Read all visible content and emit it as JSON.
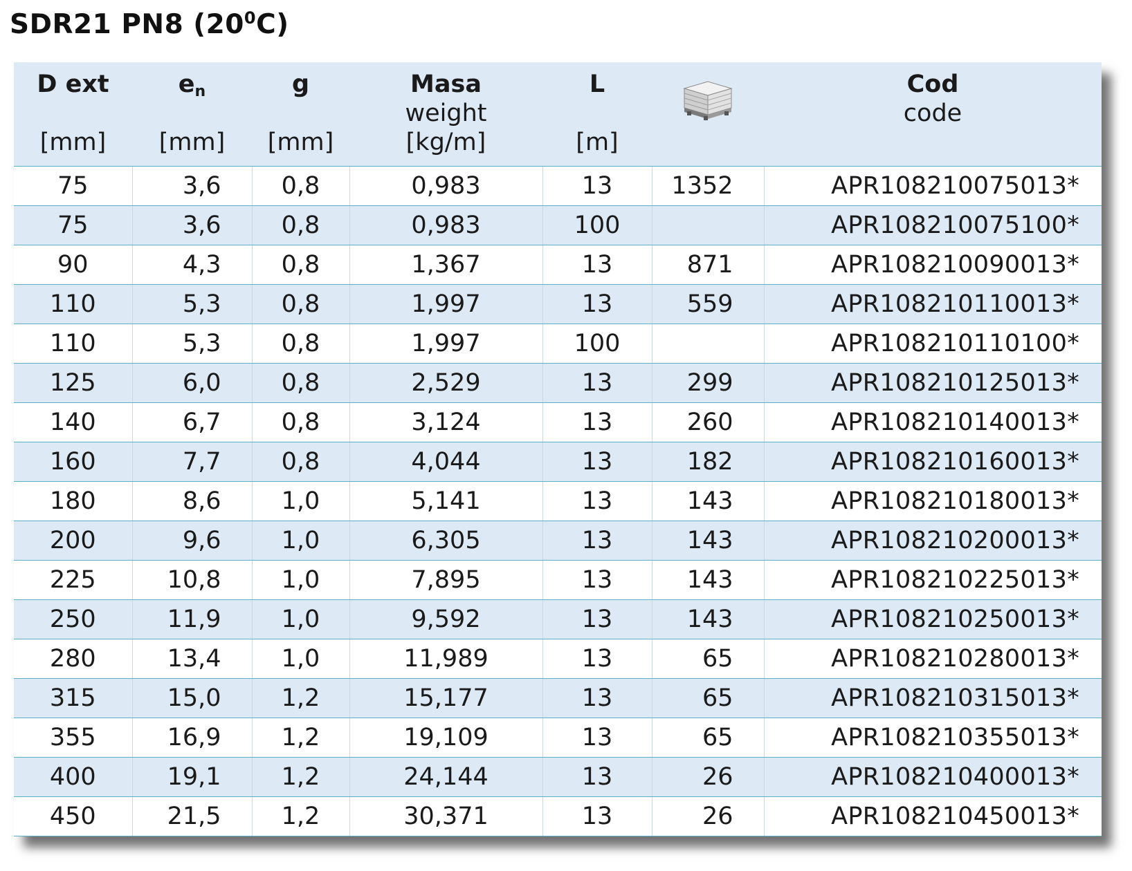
{
  "title": "SDR21 PN8 (20",
  "title_sup": "0",
  "title_end": "C)",
  "columns": [
    {
      "main": "D ext",
      "sub": "",
      "unit": "[mm]"
    },
    {
      "main": "e",
      "main_sub": "n",
      "sub": "",
      "unit": "[mm]"
    },
    {
      "main": "g",
      "sub": "",
      "unit": "[mm]"
    },
    {
      "main": "Masa",
      "sub": "weight",
      "unit": "[kg/m]"
    },
    {
      "main": "L",
      "sub": "",
      "unit": "[m]"
    },
    {
      "main": "",
      "icon": "pallet-stack-icon",
      "sub": "",
      "unit": ""
    },
    {
      "main": "Cod",
      "sub": "code",
      "unit": ""
    }
  ],
  "rows": [
    [
      "75",
      "3,6",
      "0,8",
      "0,983",
      "13",
      "1352",
      "APR10821007501 3*"
    ],
    [
      "75",
      "3,6",
      "0,8",
      "0,983",
      "100",
      "",
      "APR10821007510 0*"
    ],
    [
      "90",
      "4,3",
      "0,8",
      "1,367",
      "13",
      "871",
      "APR10821009001 3*"
    ],
    [
      "110",
      "5,3",
      "0,8",
      "1,997",
      "13",
      "559",
      "APR10821011001 3*"
    ],
    [
      "110",
      "5,3",
      "0,8",
      "1,997",
      "100",
      "",
      "APR10821011010 0*"
    ],
    [
      "125",
      "6,0",
      "0,8",
      "2,529",
      "13",
      "299",
      "APR10821012501 3*"
    ],
    [
      "140",
      "6,7",
      "0,8",
      "3,124",
      "13",
      "260",
      "APR10821014001 3*"
    ],
    [
      "160",
      "7,7",
      "0,8",
      "4,044",
      "13",
      "182",
      "APR10821016001 3*"
    ],
    [
      "180",
      "8,6",
      "1,0",
      "5,141",
      "13",
      "143",
      "APR10821018001 3*"
    ],
    [
      "200",
      "9,6",
      "1,0",
      "6,305",
      "13",
      "143",
      "APR10821020001 3*"
    ],
    [
      "225",
      "10,8",
      "1,0",
      "7,895",
      "13",
      "143",
      "APR10821022501 3*"
    ],
    [
      "250",
      "11,9",
      "1,0",
      "9,592",
      "13",
      "143",
      "APR10821025001 3*"
    ],
    [
      "280",
      "13,4",
      "1,0",
      "11,989",
      "13",
      "65",
      "APR10821028001 3*"
    ],
    [
      "315",
      "15,0",
      "1,2",
      "15,177",
      "13",
      "65",
      "APR10821031501 3*"
    ],
    [
      "355",
      "16,9",
      "1,2",
      "19,109",
      "13",
      "65",
      "APR10821035501 3*"
    ],
    [
      "400",
      "19,1",
      "1,2",
      "24,144",
      "13",
      "26",
      "APR10821040001 3*"
    ],
    [
      "450",
      "21,5",
      "1,2",
      "30,371",
      "13",
      "26",
      "APR10821045001 3*"
    ]
  ],
  "colors": {
    "header_bg": "#dde9f5",
    "alt_row_bg": "#dde9f5",
    "rule": "#5bb0c8"
  }
}
